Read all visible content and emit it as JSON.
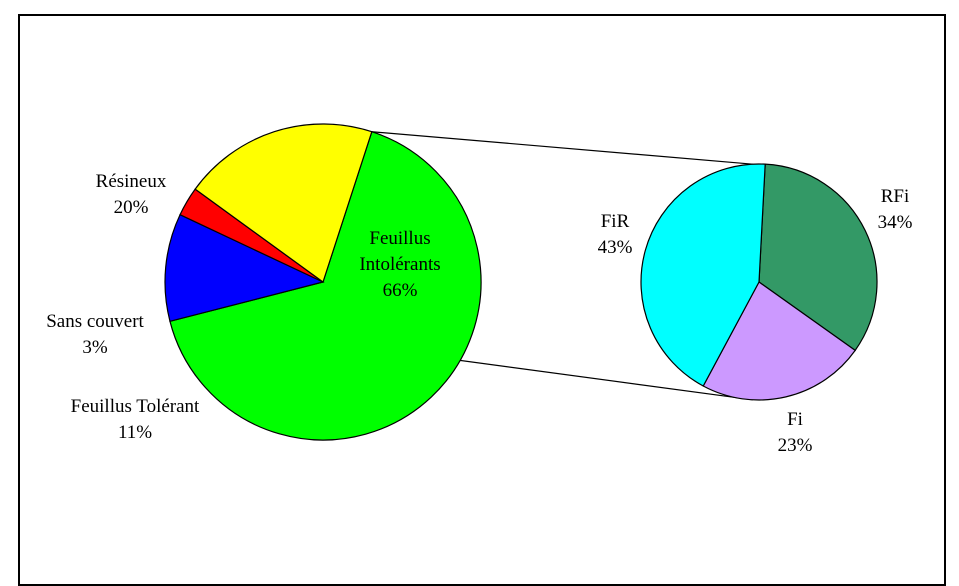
{
  "chart_data": {
    "type": "pie",
    "title": "",
    "main_pie": {
      "slices": [
        {
          "label": "Feuillus Intolérants",
          "label_lines": [
            "Feuillus",
            "Intolérants"
          ],
          "value": 66,
          "percent_label": "66%",
          "color": "#00FF00"
        },
        {
          "label": "Feuillus Tolérant",
          "label_lines": [
            "Feuillus Tolérant"
          ],
          "value": 11,
          "percent_label": "11%",
          "color": "#0000FF"
        },
        {
          "label": "Sans couvert",
          "label_lines": [
            "Sans couvert"
          ],
          "value": 3,
          "percent_label": "3%",
          "color": "#FF0000"
        },
        {
          "label": "Résineux",
          "label_lines": [
            "Résineux"
          ],
          "value": 20,
          "percent_label": "20%",
          "color": "#FFFF00"
        }
      ]
    },
    "breakdown_pie": {
      "parent_slice": "Feuillus Intolérants",
      "slices": [
        {
          "label": "RFi",
          "label_lines": [
            "RFi"
          ],
          "value": 34,
          "percent_label": "34%",
          "color": "#339966"
        },
        {
          "label": "Fi",
          "label_lines": [
            "Fi"
          ],
          "value": 23,
          "percent_label": "23%",
          "color": "#CC99FF"
        },
        {
          "label": "FiR",
          "label_lines": [
            "FiR"
          ],
          "value": 43,
          "percent_label": "43%",
          "color": "#00FFFF"
        }
      ]
    }
  }
}
